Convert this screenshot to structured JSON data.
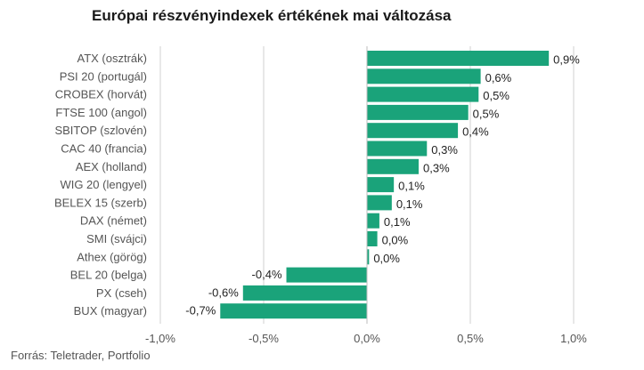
{
  "chart_data": {
    "type": "bar",
    "orientation": "horizontal",
    "title": "Európai részvényindexek értékének mai változása",
    "source": "Forrás: Teletrader, Portfolio",
    "bar_color": "#1aa37a",
    "grid_color": "#d0d0d0",
    "categories": [
      "ATX (osztrák)",
      "PSI 20 (portugál)",
      "CROBEX (horvát)",
      "FTSE 100 (angol)",
      "SBITOP (szlovén)",
      "CAC 40 (francia)",
      "AEX (holland)",
      "WIG 20 (lengyel)",
      "BELEX 15 (szerb)",
      "DAX (német)",
      "SMI (svájci)",
      "Athex (görög)",
      "BEL 20 (belga)",
      "PX (cseh)",
      "BUX (magyar)"
    ],
    "values": [
      0.88,
      0.55,
      0.54,
      0.49,
      0.44,
      0.29,
      0.25,
      0.13,
      0.12,
      0.06,
      0.05,
      0.01,
      -0.39,
      -0.6,
      -0.71
    ],
    "value_labels": [
      "0,9%",
      "0,6%",
      "0,5%",
      "0,5%",
      "0,4%",
      "0,3%",
      "0,3%",
      "0,1%",
      "0,1%",
      "0,1%",
      "0,0%",
      "0,0%",
      "-0,4%",
      "-0,6%",
      "-0,7%"
    ],
    "xlim": [
      -1.0,
      1.0
    ],
    "xticks": [
      -1.0,
      -0.5,
      0.0,
      0.5,
      1.0
    ],
    "xtick_labels": [
      "-1,0%",
      "-0,5%",
      "0,0%",
      "0,5%",
      "1,0%"
    ],
    "grid": true
  }
}
